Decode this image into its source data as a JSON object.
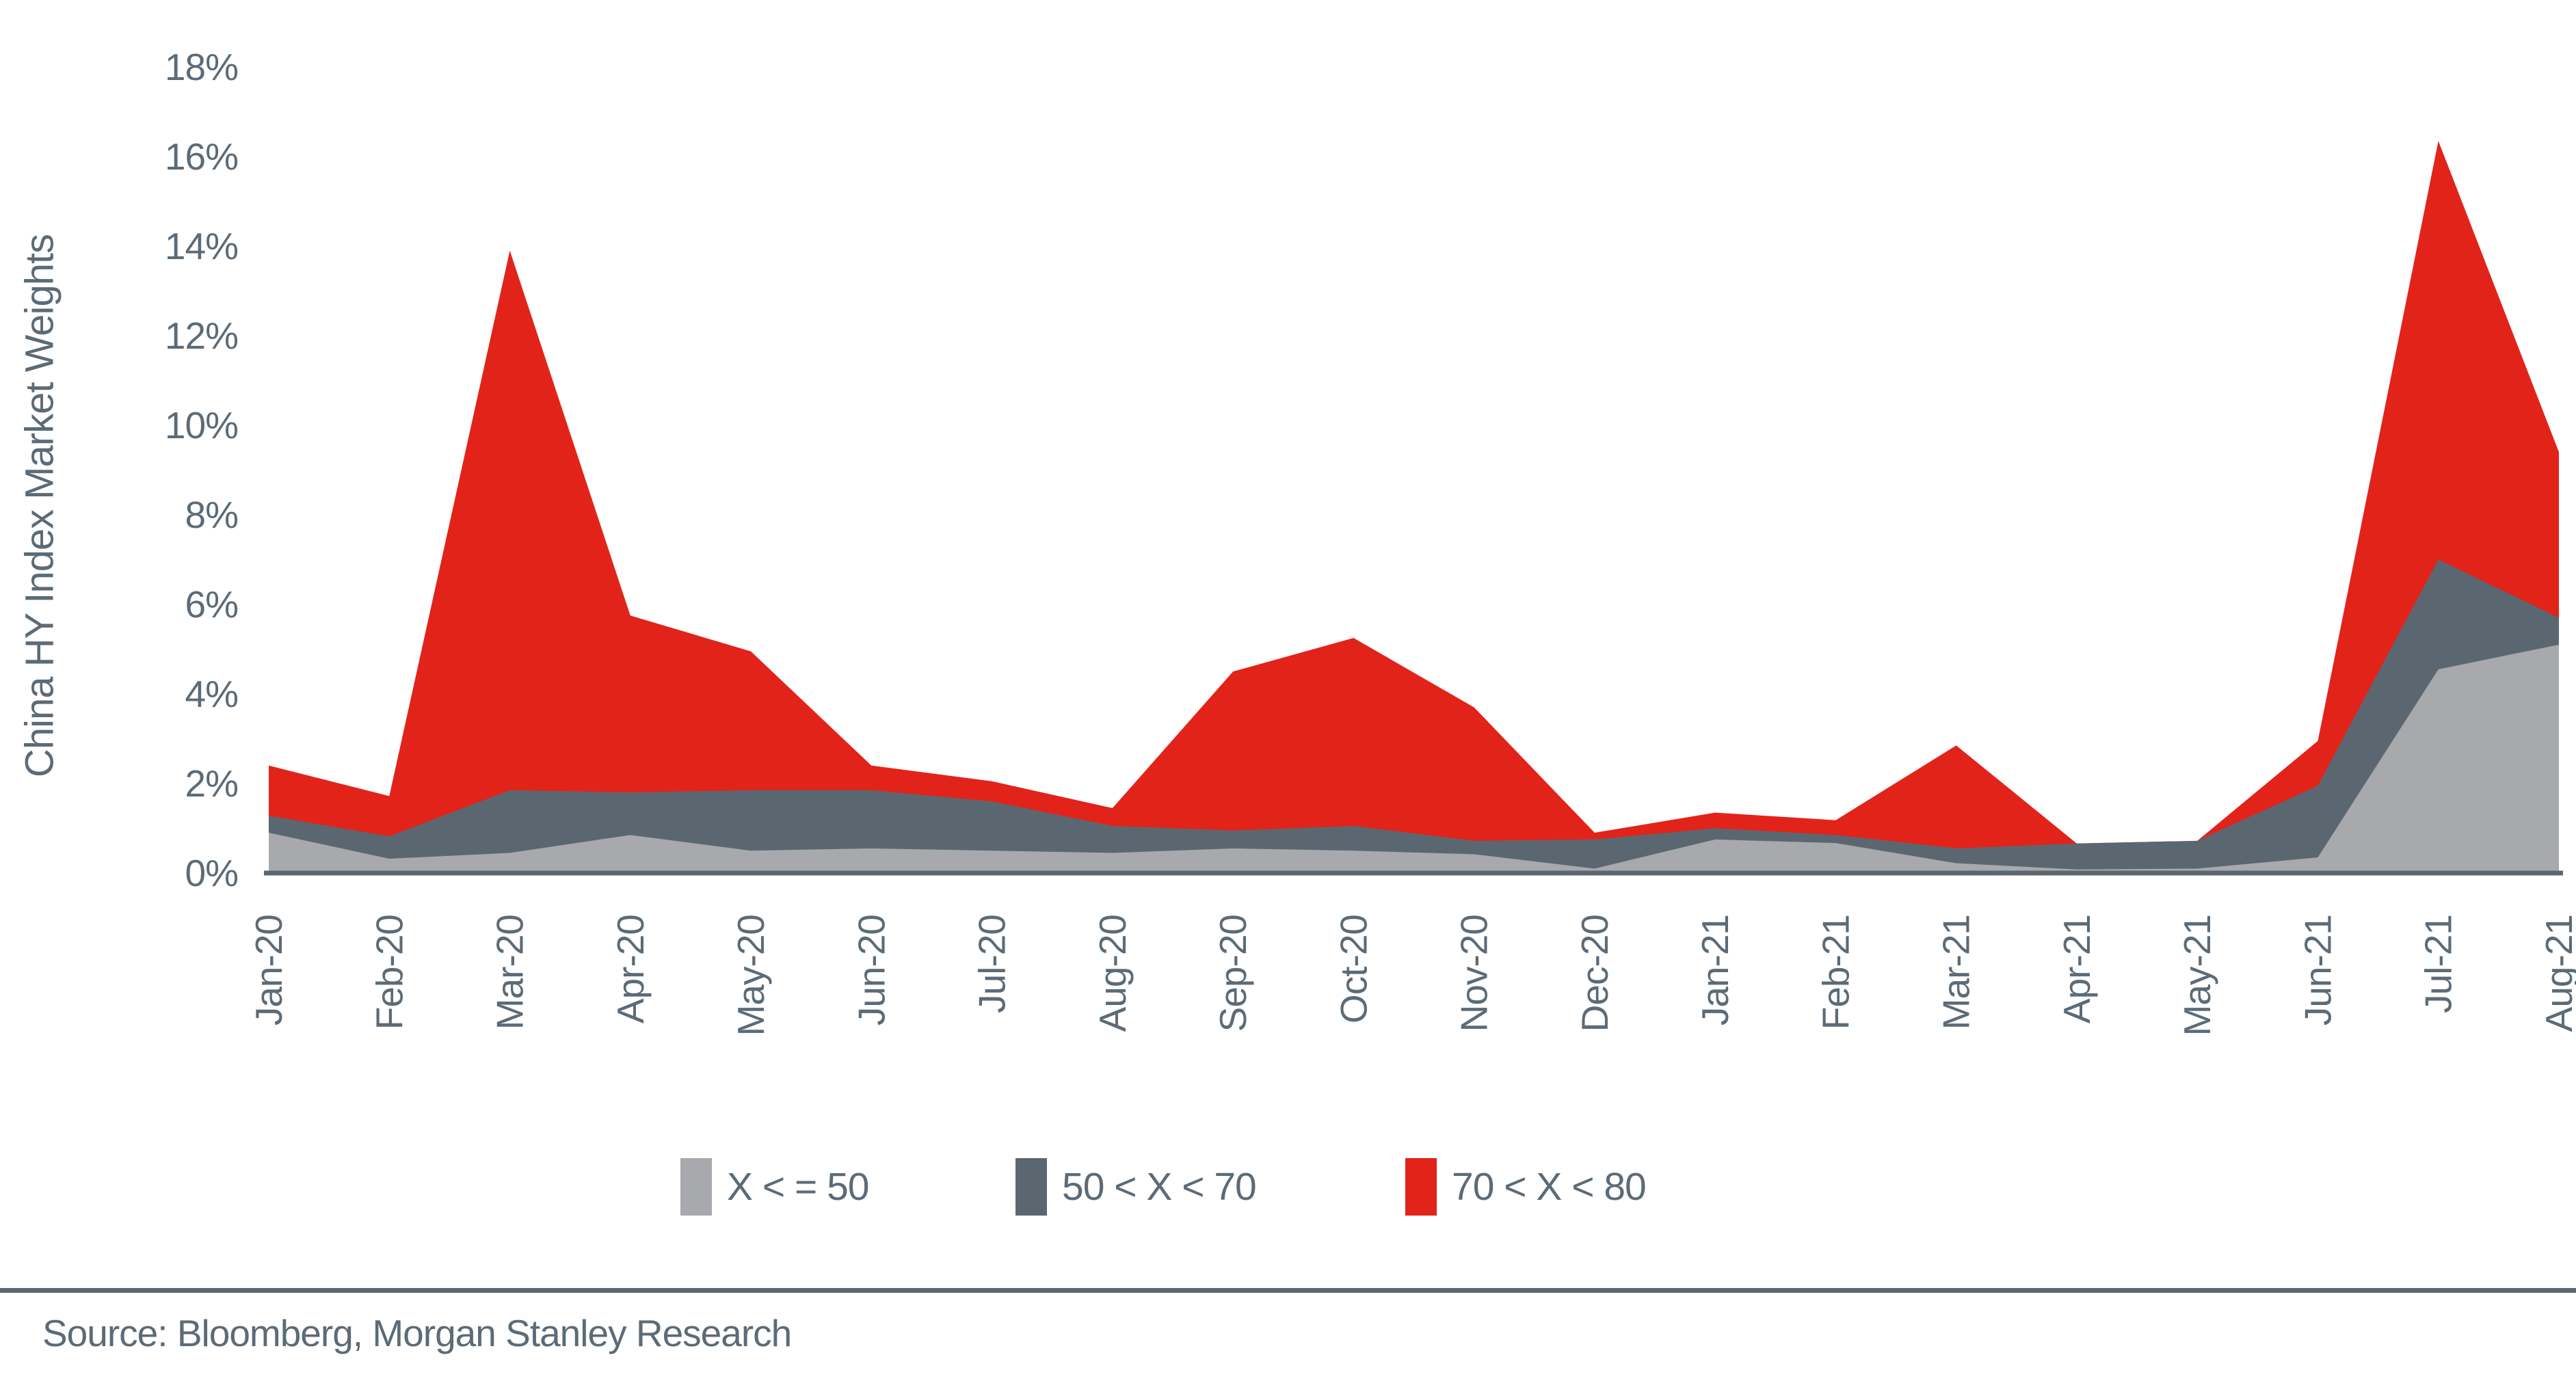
{
  "y_axis": {
    "title": "China HY Index Market Weights",
    "tick_labels": [
      "18%",
      "16%",
      "14%",
      "12%",
      "10%",
      "8%",
      "6%",
      "4%",
      "2%",
      "0%"
    ],
    "min": 0,
    "max": 18,
    "tick_step": 2
  },
  "x_axis": {
    "tick_labels": [
      "Jan-20",
      "Feb-20",
      "Mar-20",
      "Apr-20",
      "May-20",
      "Jun-20",
      "Jul-20",
      "Aug-20",
      "Sep-20",
      "Oct-20",
      "Nov-20",
      "Dec-20",
      "Jan-21",
      "Feb-21",
      "Mar-21",
      "Apr-21",
      "May-21",
      "Jun-21",
      "Jul-21",
      "Aug-21"
    ]
  },
  "legend": {
    "items": [
      {
        "label": "X < = 50",
        "color": "#a7a9ac"
      },
      {
        "label": "50 < X < 70",
        "color": "#5b6770"
      },
      {
        "label": "70 < X < 80",
        "color": "#e2231a"
      }
    ]
  },
  "source": {
    "text": "Source: Bloomberg, Morgan Stanley Research"
  },
  "colors": {
    "band_light_gray": "#a7a9ac",
    "band_dark_slate": "#5b6770",
    "band_red": "#e2231a",
    "axis_line": "#5b6770",
    "text": "#5b6b77",
    "background": "#ffffff"
  },
  "chart_data": {
    "type": "area",
    "stacked": true,
    "title": "",
    "xlabel": "",
    "ylabel": "China HY Index Market Weights",
    "ylim": [
      0,
      18
    ],
    "grid": false,
    "legend_position": "bottom",
    "categories": [
      "Jan-20",
      "Feb-20",
      "Mar-20",
      "Apr-20",
      "May-20",
      "Jun-20",
      "Jul-20",
      "Aug-20",
      "Sep-20",
      "Oct-20",
      "Nov-20",
      "Dec-20",
      "Jan-21",
      "Feb-21",
      "Mar-21",
      "Apr-21",
      "May-21",
      "Jun-21",
      "Jul-21",
      "Aug-21"
    ],
    "series": [
      {
        "name": "X < = 50",
        "color": "#a7a9ac",
        "values": [
          0.9,
          0.32,
          0.45,
          0.85,
          0.5,
          0.55,
          0.5,
          0.45,
          0.55,
          0.5,
          0.42,
          0.1,
          0.75,
          0.67,
          0.22,
          0.08,
          0.1,
          0.35,
          4.55,
          5.1
        ]
      },
      {
        "name": "50 < X < 70",
        "color": "#5b6770",
        "values": [
          0.38,
          0.5,
          1.4,
          0.95,
          1.35,
          1.3,
          1.1,
          0.6,
          0.4,
          0.55,
          0.3,
          0.65,
          0.25,
          0.18,
          0.33,
          0.58,
          0.62,
          1.6,
          2.45,
          0.6
        ]
      },
      {
        "name": "70 < X < 80",
        "color": "#e2231a",
        "values": [
          1.12,
          0.9,
          12.05,
          3.95,
          3.1,
          0.55,
          0.45,
          0.4,
          3.55,
          4.2,
          2.98,
          0.15,
          0.35,
          0.33,
          2.3,
          0.0,
          0.0,
          1.0,
          9.35,
          3.7
        ]
      }
    ],
    "totals": [
      2.4,
      1.72,
      13.9,
      5.75,
      4.95,
      2.4,
      2.05,
      1.45,
      4.5,
      5.25,
      3.7,
      0.9,
      1.35,
      1.18,
      2.85,
      0.66,
      0.72,
      2.95,
      16.35,
      9.4
    ]
  }
}
